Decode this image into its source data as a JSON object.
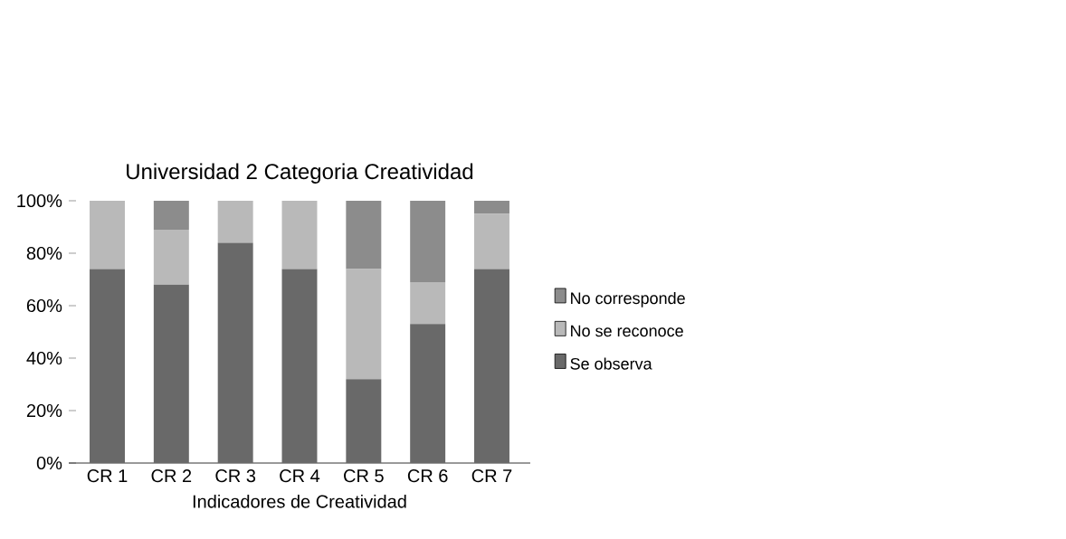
{
  "chart_data": {
    "type": "bar",
    "stacked": true,
    "title": "Universidad 2 Categoria Creatividad",
    "xlabel": "Indicadores de Creatividad",
    "categories": [
      "CR 1",
      "CR 2",
      "CR 3",
      "CR 4",
      "CR 5",
      "CR 6",
      "CR 7"
    ],
    "series": [
      {
        "name": "Se observa",
        "color": "#696969",
        "values": [
          74,
          68,
          84,
          74,
          32,
          53,
          74
        ]
      },
      {
        "name": "No se reconoce",
        "color": "#b9b9b9",
        "values": [
          26,
          21,
          16,
          26,
          42,
          16,
          21
        ]
      },
      {
        "name": "No corresponde",
        "color": "#8c8c8c",
        "values": [
          0,
          11,
          0,
          0,
          26,
          31,
          5
        ]
      }
    ],
    "ylim": [
      0,
      100
    ],
    "yticks": [
      {
        "value": 0,
        "label": "0%"
      },
      {
        "value": 20,
        "label": "20%"
      },
      {
        "value": 40,
        "label": "40%"
      },
      {
        "value": 60,
        "label": "60%"
      },
      {
        "value": 80,
        "label": "80%"
      },
      {
        "value": 100,
        "label": "100%"
      }
    ],
    "legend": "right",
    "grid": false
  }
}
